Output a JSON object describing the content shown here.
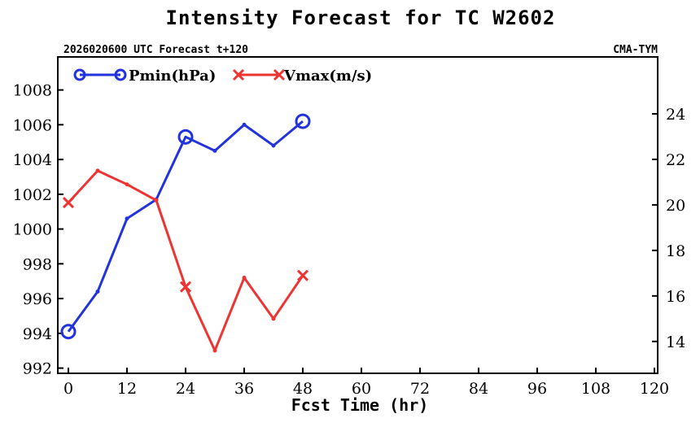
{
  "colors": {
    "pmin": "#2233dd",
    "vmax": "#ee3333",
    "axis": "#000000"
  },
  "chart_data": {
    "type": "line",
    "title": "Intensity Forecast for TC W2602",
    "subtitle_left": "2026020600 UTC Forecast t+120",
    "subtitle_right": "CMA-TYM",
    "xlabel": "Fcst Time (hr)",
    "xlim": [
      0,
      120
    ],
    "x_ticks": [
      0,
      12,
      24,
      36,
      48,
      60,
      72,
      84,
      96,
      108,
      120
    ],
    "x_tick_labels": [
      "0",
      "12",
      "24",
      "36",
      "48",
      "60",
      "72",
      "84",
      "96",
      "108",
      "120"
    ],
    "y_left": {
      "lim": [
        991.7,
        1009.9
      ],
      "ticks": [
        992,
        994,
        996,
        998,
        1000,
        1002,
        1004,
        1006,
        1008
      ],
      "tick_labels": [
        "992",
        "994",
        "996",
        "998",
        "1000",
        "1002",
        "1004",
        "1006",
        "1008"
      ]
    },
    "y_right": {
      "lim": [
        12.6,
        26.5
      ],
      "ticks": [
        14,
        16,
        18,
        20,
        22,
        24
      ],
      "tick_labels": [
        "14",
        "16",
        "18",
        "20",
        "22",
        "24"
      ]
    },
    "series": [
      {
        "name": "Pmin(hPa)",
        "axis": "left",
        "marker": "circle",
        "x": [
          0,
          6,
          12,
          18,
          24,
          30,
          36,
          42,
          48
        ],
        "values": [
          994.1,
          996.4,
          1000.6,
          1001.7,
          1005.3,
          1004.5,
          1006.0,
          1004.8,
          1006.2
        ],
        "big_marker_x": [
          0,
          24,
          48
        ]
      },
      {
        "name": "Vmax(m/s)",
        "axis": "right",
        "marker": "x",
        "x": [
          0,
          6,
          12,
          18,
          24,
          30,
          36,
          42,
          48
        ],
        "values": [
          20.1,
          21.5,
          20.9,
          20.2,
          16.4,
          13.6,
          16.8,
          15.0,
          16.9
        ],
        "big_marker_x": [
          0,
          24,
          48
        ]
      }
    ]
  }
}
